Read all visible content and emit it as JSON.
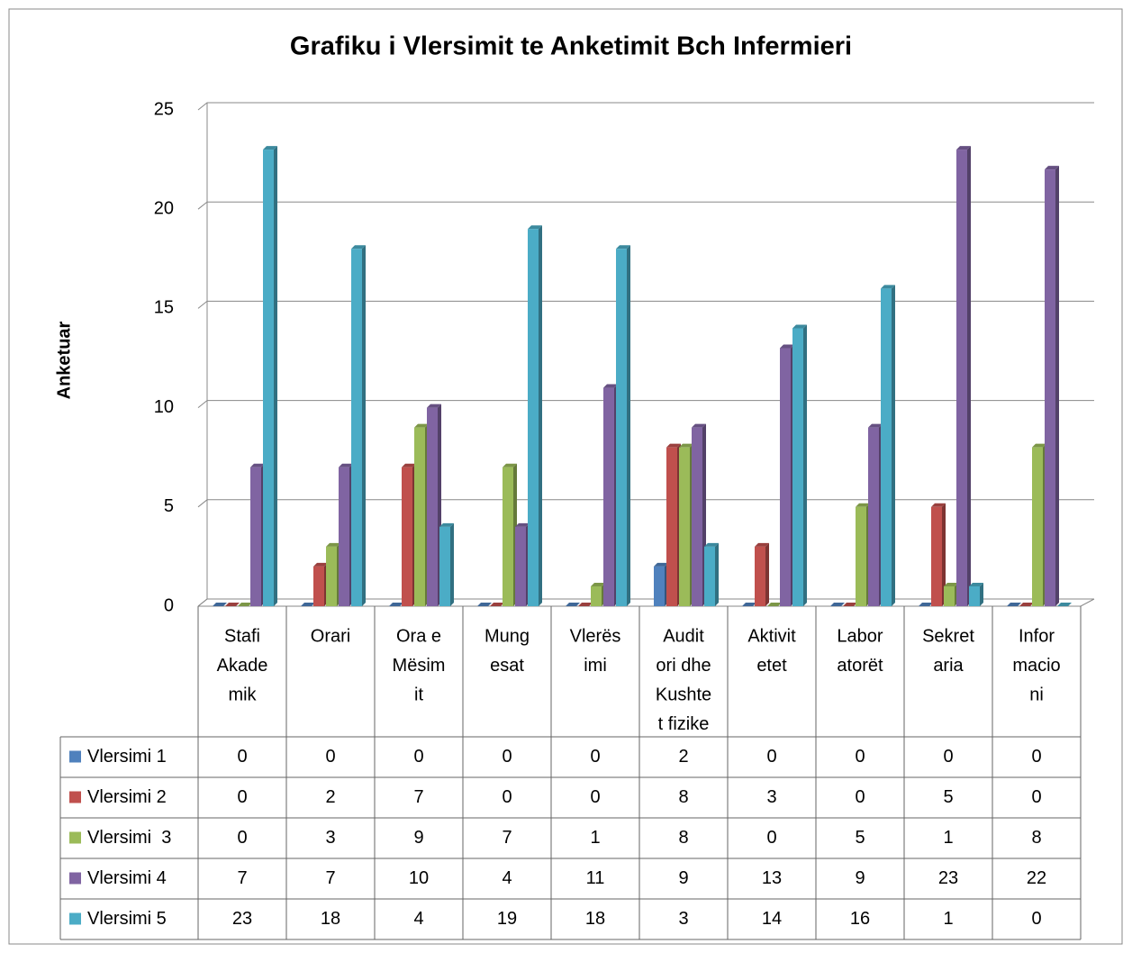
{
  "chart_data": {
    "type": "bar3d",
    "title": "Grafiku i Vlersimit te Anketimit Bch Infermieri",
    "y_label": "Anketuar",
    "categories": [
      [
        "Stafi",
        "Akade",
        "mik"
      ],
      [
        "Orari"
      ],
      [
        "Ora e",
        "Mësim",
        "it"
      ],
      [
        "Mung",
        "esat"
      ],
      [
        "Vlerës",
        "imi"
      ],
      [
        "Audit",
        "ori dhe",
        "Kushte",
        "t fizike"
      ],
      [
        "Aktivit",
        "etet"
      ],
      [
        "Labor",
        "atorët"
      ],
      [
        "Sekret",
        "aria"
      ],
      [
        "Infor",
        "macio",
        "ni"
      ]
    ],
    "series": [
      {
        "name": "Vlersimi 1",
        "color": "#4f81bd",
        "values": [
          0,
          0,
          0,
          0,
          0,
          2,
          0,
          0,
          0,
          0
        ]
      },
      {
        "name": "Vlersimi 2",
        "color": "#c0504d",
        "values": [
          0,
          2,
          7,
          0,
          0,
          8,
          3,
          0,
          5,
          0
        ]
      },
      {
        "name": "Vlersimi  3",
        "color": "#9bbb59",
        "values": [
          0,
          3,
          9,
          7,
          1,
          8,
          0,
          5,
          1,
          8
        ]
      },
      {
        "name": "Vlersimi 4",
        "color": "#8064a2",
        "values": [
          7,
          7,
          10,
          4,
          11,
          9,
          13,
          9,
          23,
          22
        ]
      },
      {
        "name": "Vlersimi 5",
        "color": "#4bacc6",
        "values": [
          23,
          18,
          4,
          19,
          18,
          3,
          14,
          16,
          1,
          0
        ]
      }
    ],
    "ylim": [
      0,
      25
    ],
    "yticks": [
      0,
      5,
      10,
      15,
      20,
      25
    ],
    "grid": true
  }
}
